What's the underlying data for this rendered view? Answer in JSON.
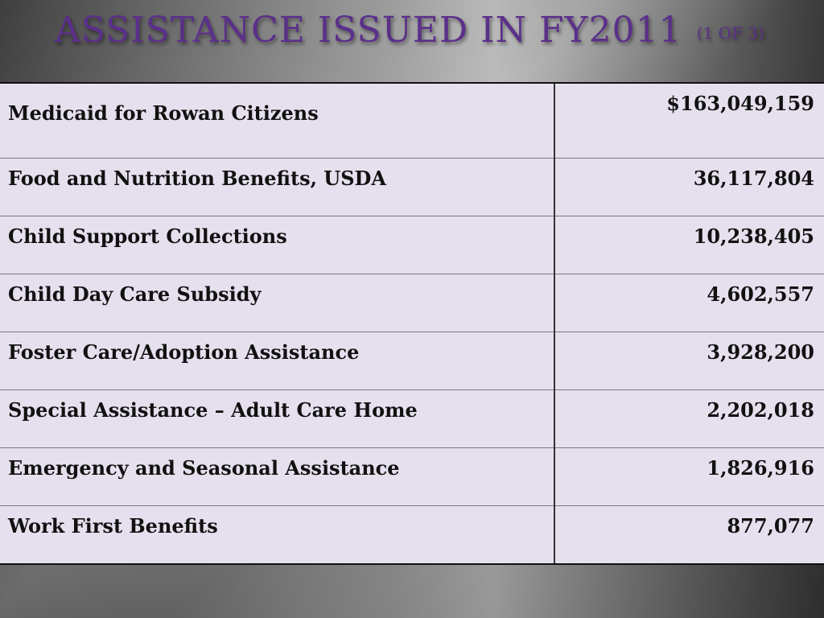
{
  "slide": {
    "title": "ASSISTANCE ISSUED IN FY2011",
    "subtitle": "(1 OF 3)"
  },
  "table": {
    "rows": [
      {
        "label": "Medicaid for Rowan Citizens",
        "amount": "$163,049,159"
      },
      {
        "label": "Food and Nutrition Benefits, USDA",
        "amount": "36,117,804"
      },
      {
        "label": "Child Support Collections",
        "amount": "10,238,405"
      },
      {
        "label": "Child Day Care Subsidy",
        "amount": "4,602,557"
      },
      {
        "label": "Foster Care/Adoption Assistance",
        "amount": "3,928,200"
      },
      {
        "label": "Special Assistance – Adult Care Home",
        "amount": "2,202,018"
      },
      {
        "label": "Emergency and Seasonal Assistance",
        "amount": "1,826,916"
      },
      {
        "label": "Work First Benefits",
        "amount": "877,077"
      }
    ]
  },
  "colors": {
    "title": "#5b2f8a",
    "table_background": "#e6e0ee"
  }
}
